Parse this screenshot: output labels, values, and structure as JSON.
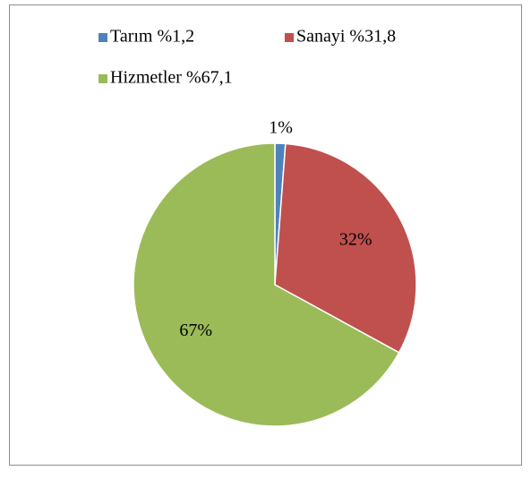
{
  "chart_data": {
    "type": "pie",
    "categories": [
      "Tarım %1,2",
      "Sanayi %31,8",
      "Hizmetler %67,1"
    ],
    "values": [
      1.2,
      31.8,
      67.1
    ],
    "value_labels": [
      "1%",
      "32%",
      "67%"
    ],
    "colors": [
      "#4f81bd",
      "#c0504d",
      "#9bbb59"
    ],
    "legend": "top"
  }
}
